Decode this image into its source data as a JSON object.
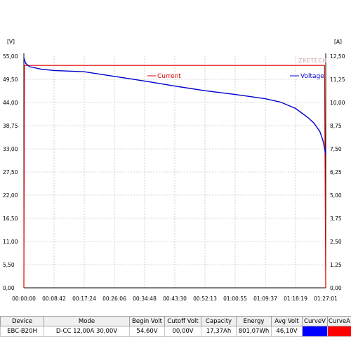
{
  "chart_data": {
    "type": "line",
    "x_unit": "time (h:mm:ss)",
    "y_left_unit": "[V]",
    "y_right_unit": "[A]",
    "y_left_range": [
      0,
      55
    ],
    "y_right_range": [
      0,
      12.5
    ],
    "y_left_ticks": [
      "55,00",
      "49,50",
      "44,00",
      "38,75",
      "33,00",
      "27,50",
      "22,00",
      "16,50",
      "11,00",
      "5,50",
      "0,00"
    ],
    "y_right_ticks": [
      "12,50",
      "11,25",
      "10,00",
      "8,75",
      "7,50",
      "6,25",
      "5,00",
      "3,75",
      "2,50",
      "1,25",
      "0,00"
    ],
    "x_ticks": [
      "00:00:00",
      "00:08:42",
      "00:17:24",
      "00:26:06",
      "00:34:48",
      "00:43:30",
      "00:52:13",
      "01:00:55",
      "01:09:37",
      "01:18:19",
      "01:27:01"
    ],
    "x_range_seconds": [
      0,
      5221
    ],
    "grid": true,
    "watermark": "ZKETECH",
    "series": [
      {
        "name": "Current",
        "axis": "right",
        "color": "#e00000",
        "x": [
          0,
          10,
          5200,
          5221
        ],
        "y": [
          0,
          12.0,
          12.0,
          0
        ]
      },
      {
        "name": "Voltage",
        "axis": "left",
        "color": "#0000cc",
        "x": [
          0,
          30,
          100,
          300,
          522,
          1044,
          1566,
          2088,
          2610,
          3132,
          3654,
          4176,
          4437,
          4698,
          4907,
          5012,
          5116,
          5168,
          5190,
          5221
        ],
        "y": [
          54.6,
          53.3,
          52.5,
          51.9,
          51.6,
          51.3,
          50.2,
          49.1,
          47.9,
          46.8,
          45.9,
          44.9,
          44.1,
          42.6,
          40.5,
          39.2,
          37.2,
          35.2,
          34.0,
          31.6
        ]
      }
    ]
  },
  "table": {
    "headers": [
      "Device",
      "Mode",
      "Begin Volt",
      "Cutoff Volt",
      "Capacity",
      "Energy",
      "Avg Volt",
      "CurveV",
      "CurveA"
    ],
    "row": {
      "device": "EBC-B20H",
      "mode": "D-CC  12,00A  30,00V",
      "begin_volt": "54,60V",
      "cutoff_volt": "00,00V",
      "capacity": "17,37Ah",
      "energy": "801,07Wh",
      "avg_volt": "46,10V",
      "curve_v_color": "#0000ff",
      "curve_a_color": "#ff0000"
    }
  }
}
